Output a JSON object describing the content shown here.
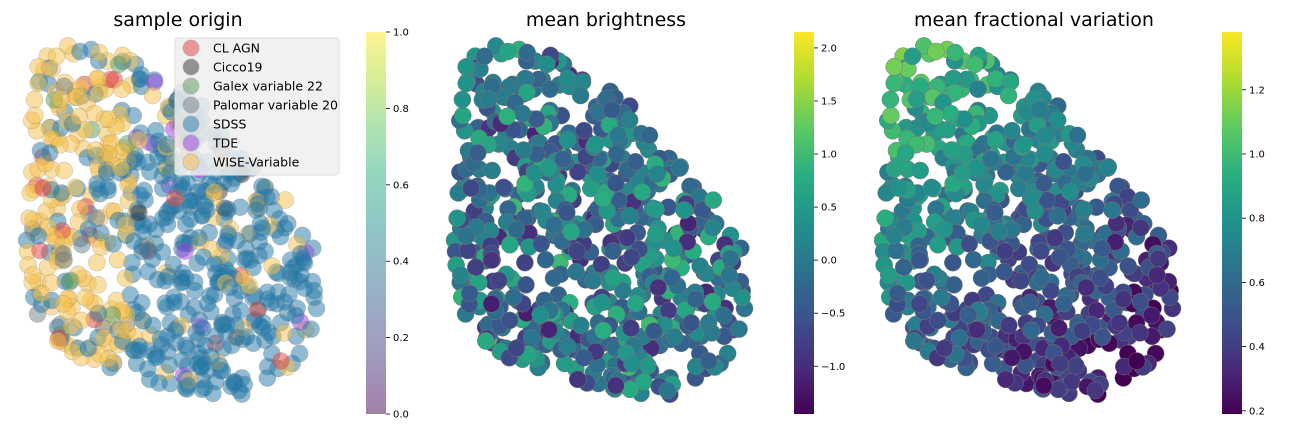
{
  "chart_data": [
    {
      "type": "scatter",
      "title": "sample origin",
      "colorbar": {
        "min": 0.0,
        "max": 1.0,
        "ticks": [
          "0.0",
          "0.2",
          "0.4",
          "0.6",
          "0.8",
          "1.0"
        ],
        "tick_values": [
          0.0,
          0.2,
          0.4,
          0.6,
          0.8,
          1.0
        ],
        "colormap": "viridis",
        "alpha": 0.5
      },
      "legend": {
        "placement": "top-right",
        "entries": [
          {
            "label": "CL AGN",
            "color": "#e4413c"
          },
          {
            "label": "Cicco19",
            "color": "#333333"
          },
          {
            "label": "Galex variable 22",
            "color": "#5a9a5a"
          },
          {
            "label": "Palomar variable 20",
            "color": "#6e7f86"
          },
          {
            "label": "SDSS",
            "color": "#2278a8"
          },
          {
            "label": "TDE",
            "color": "#9b3fe0"
          },
          {
            "label": "WISE-Variable",
            "color": "#f5c04a"
          }
        ]
      },
      "axes": "off"
    },
    {
      "type": "scatter",
      "title": "mean brightness",
      "colorbar": {
        "min": -1.45,
        "max": 2.15,
        "ticks": [
          "−1.0",
          "−0.5",
          "0.0",
          "0.5",
          "1.0",
          "1.5",
          "2.0"
        ],
        "tick_values": [
          -1.0,
          -0.5,
          0.0,
          0.5,
          1.0,
          1.5,
          2.0
        ],
        "colormap": "viridis"
      },
      "axes": "off"
    },
    {
      "type": "scatter",
      "title": "mean fractional variation",
      "colorbar": {
        "min": 0.19,
        "max": 1.38,
        "ticks": [
          "0.2",
          "0.4",
          "0.6",
          "0.8",
          "1.0",
          "1.2"
        ],
        "tick_values": [
          0.2,
          0.4,
          0.6,
          0.8,
          1.0,
          1.2
        ],
        "colormap": "viridis"
      },
      "axes": "off"
    }
  ]
}
